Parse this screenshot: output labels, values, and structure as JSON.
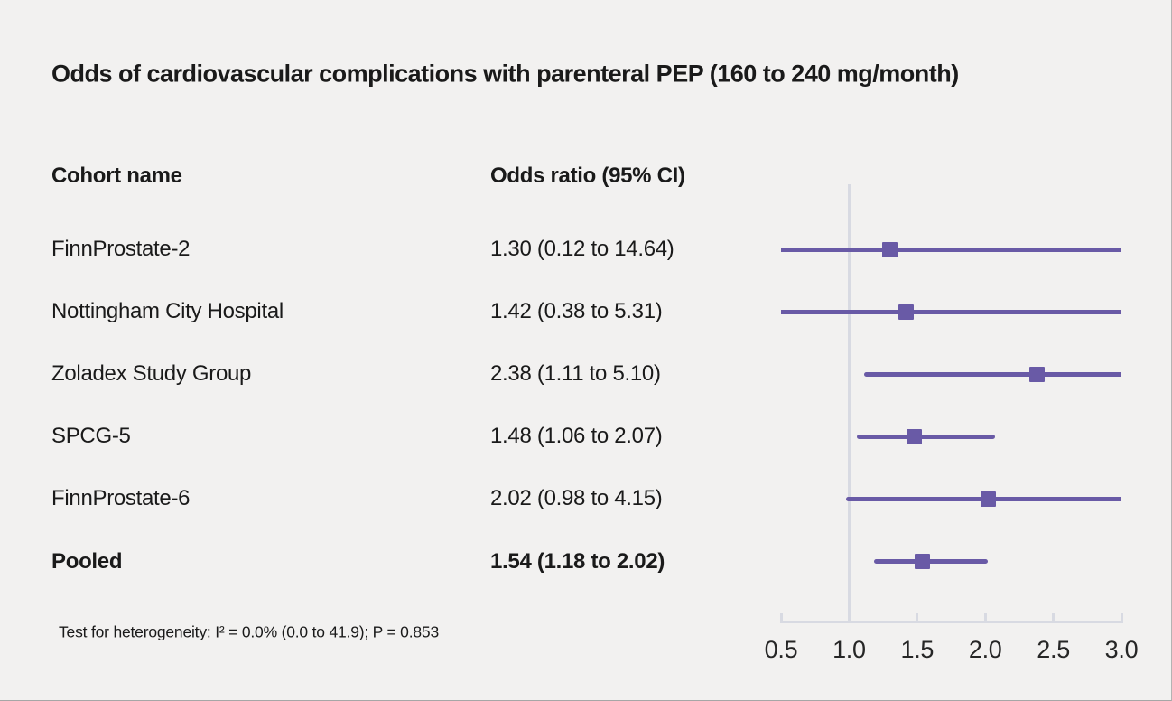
{
  "colors": {
    "background": "#f2f1f0",
    "marker": "#695aa6",
    "axis_line": "#d8dae2",
    "text": "#1a1a1a"
  },
  "chart_data": {
    "type": "forest",
    "title": "Odds of cardiovascular complications with parenteral PEP (160 to 240 mg/month)",
    "column_headers": {
      "cohort": "Cohort name",
      "odds_ratio": "Odds ratio (95% CI)"
    },
    "xlabel": "",
    "xlim": [
      0.5,
      3.0
    ],
    "reference_line": 1.0,
    "ticks": [
      0.5,
      1.0,
      1.5,
      2.0,
      2.5,
      3.0
    ],
    "tick_labels": [
      "0.5",
      "1.0",
      "1.5",
      "2.0",
      "2.5",
      "3.0"
    ],
    "grid": false,
    "rows": [
      {
        "cohort": "FinnProstate-2",
        "or": 1.3,
        "ci_low": 0.12,
        "ci_high": 14.64,
        "or_text": "1.30 (0.12 to 14.64)",
        "bold": false
      },
      {
        "cohort": "Nottingham City Hospital",
        "or": 1.42,
        "ci_low": 0.38,
        "ci_high": 5.31,
        "or_text": "1.42 (0.38 to 5.31)",
        "bold": false
      },
      {
        "cohort": "Zoladex Study Group",
        "or": 2.38,
        "ci_low": 1.11,
        "ci_high": 5.1,
        "or_text": "2.38 (1.11 to 5.10)",
        "bold": false
      },
      {
        "cohort": "SPCG-5",
        "or": 1.48,
        "ci_low": 1.06,
        "ci_high": 2.07,
        "or_text": "1.48 (1.06 to 2.07)",
        "bold": false
      },
      {
        "cohort": "FinnProstate-6",
        "or": 2.02,
        "ci_low": 0.98,
        "ci_high": 4.15,
        "or_text": "2.02 (0.98 to 4.15)",
        "bold": false
      },
      {
        "cohort": "Pooled",
        "or": 1.54,
        "ci_low": 1.18,
        "ci_high": 2.02,
        "or_text": "1.54 (1.18 to 2.02)",
        "bold": true
      }
    ],
    "annotation": "Test for heterogeneity: I² = 0.0% (0.0 to 41.9); P = 0.853"
  }
}
